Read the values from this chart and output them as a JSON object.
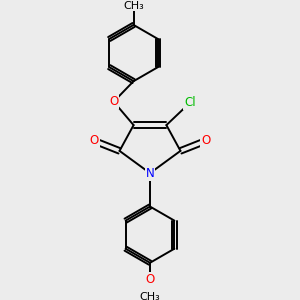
{
  "background_color": "#ececec",
  "bond_color": "#000000",
  "bond_width": 1.4,
  "atom_colors": {
    "O": "#ff0000",
    "N": "#0000ff",
    "Cl": "#00bb00",
    "C": "#000000"
  },
  "font_size_atom": 8.5
}
